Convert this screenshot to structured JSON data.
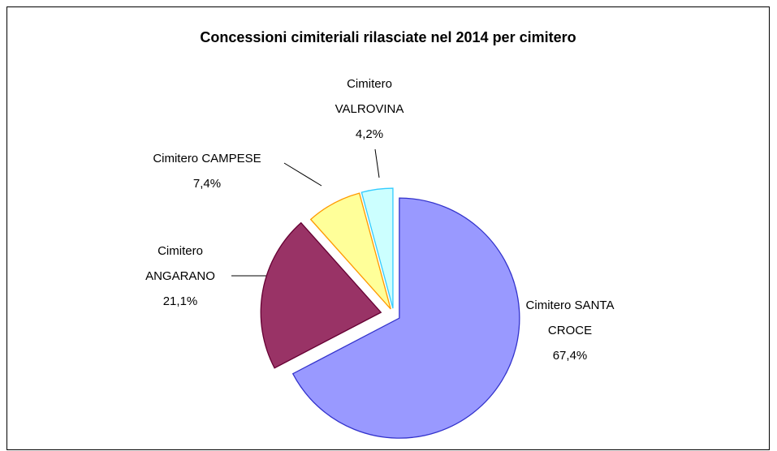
{
  "chart_data": {
    "type": "pie",
    "title": "Concessioni cimiteriali rilasciate nel 2014 per cimitero",
    "categories": [
      "Cimitero SANTA CROCE",
      "Cimitero ANGARANO",
      "Cimitero CAMPESE",
      "Cimitero VALROVINA"
    ],
    "values": [
      67.4,
      21.1,
      7.4,
      4.2
    ],
    "value_labels": [
      "67,4%",
      "21,1%",
      "7,4%",
      "4,2%"
    ],
    "colors": [
      "#9999ff",
      "#993366",
      "#ffff99",
      "#ccffff"
    ],
    "edge_colors": [
      "#3333cc",
      "#660033",
      "#ff9900",
      "#33ccff"
    ]
  }
}
